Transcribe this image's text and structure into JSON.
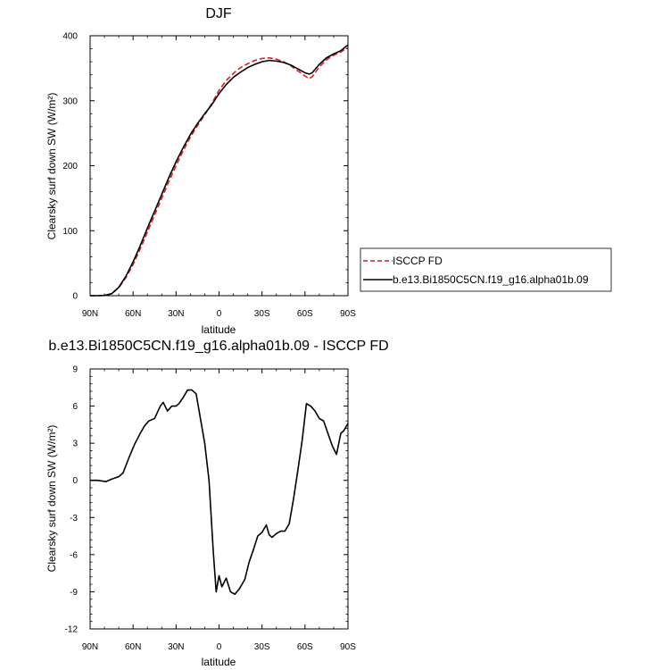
{
  "chart_data": [
    {
      "type": "line",
      "title": "DJF",
      "xlabel": "latitude",
      "ylabel": "Clearsky surf down SW (W/m²)",
      "x_ticks": [
        -90,
        -60,
        -30,
        0,
        30,
        60,
        90
      ],
      "x_tick_labels": [
        "90N",
        "60N",
        "30N",
        "0",
        "30S",
        "60S",
        "90S"
      ],
      "xlim": [
        -90,
        90
      ],
      "y_ticks": [
        0,
        100,
        200,
        300,
        400
      ],
      "y_tick_labels": [
        "0",
        "100",
        "200",
        "300",
        "400"
      ],
      "ylim": [
        0,
        400
      ],
      "grid": false,
      "legend": {
        "placement": "right",
        "entries": [
          "ISCCP FD",
          "b.e13.Bi1850C5CN.f19_g16.alpha01b.09"
        ]
      },
      "series": [
        {
          "name": "ISCCP FD",
          "color": "#e41a1c",
          "dash": true,
          "x": [
            -90,
            -85,
            -80,
            -75,
            -70,
            -65,
            -60,
            -55,
            -50,
            -45,
            -40,
            -35,
            -30,
            -25,
            -20,
            -15,
            -10,
            -5,
            0,
            5,
            10,
            15,
            20,
            25,
            30,
            35,
            40,
            45,
            50,
            55,
            60,
            63,
            65,
            70,
            75,
            80,
            85,
            90
          ],
          "values": [
            0,
            0,
            0.5,
            3,
            12,
            28,
            48,
            72,
            98,
            124,
            150,
            176,
            200,
            223,
            244,
            262,
            278,
            296,
            316,
            331,
            342,
            351,
            357,
            362,
            365,
            366,
            364,
            360,
            354,
            346,
            338,
            334,
            337,
            352,
            363,
            370,
            375,
            382
          ]
        },
        {
          "name": "b.e13.Bi1850C5CN.f19_g16.alpha01b.09",
          "color": "#000000",
          "dash": false,
          "x": [
            -90,
            -85,
            -80,
            -75,
            -70,
            -65,
            -60,
            -55,
            -50,
            -45,
            -40,
            -35,
            -30,
            -25,
            -20,
            -15,
            -10,
            -5,
            0,
            5,
            10,
            15,
            20,
            25,
            30,
            35,
            40,
            45,
            50,
            55,
            60,
            63,
            65,
            70,
            75,
            80,
            85,
            90
          ],
          "values": [
            0,
            0,
            0.5,
            3,
            13,
            30,
            52,
            77,
            104,
            130,
            156,
            182,
            206,
            228,
            248,
            265,
            280,
            294,
            311,
            325,
            336,
            344,
            351,
            356,
            360,
            362,
            361,
            359,
            355,
            349,
            343,
            341,
            343,
            356,
            366,
            372,
            377,
            386
          ]
        }
      ]
    },
    {
      "type": "line",
      "title": "b.e13.Bi1850C5CN.f19_g16.alpha01b.09 - ISCCP FD",
      "xlabel": "latitude",
      "ylabel": "Clearsky surf down SW (W/m²)",
      "x_ticks": [
        -90,
        -60,
        -30,
        0,
        30,
        60,
        90
      ],
      "x_tick_labels": [
        "90N",
        "60N",
        "30N",
        "0",
        "30S",
        "60S",
        "90S"
      ],
      "xlim": [
        -90,
        90
      ],
      "y_ticks": [
        -12,
        -9,
        -6,
        -3,
        0,
        3,
        6,
        9
      ],
      "y_tick_labels": [
        "-12",
        "-9",
        "-6",
        "-3",
        "0",
        "3",
        "6",
        "9"
      ],
      "ylim": [
        -12,
        9
      ],
      "grid": false,
      "series": [
        {
          "color": "#000000",
          "dash": false,
          "x": [
            -90,
            -85,
            -79,
            -75,
            -70,
            -67,
            -63,
            -59,
            -55,
            -52,
            -49,
            -45,
            -41,
            -39,
            -36,
            -33,
            -30,
            -28,
            -25,
            -22,
            -19,
            -16,
            -13,
            -10,
            -7,
            -4,
            -2,
            0,
            2,
            5,
            8,
            11,
            14,
            18,
            21,
            24,
            27,
            30,
            33,
            35,
            37,
            40,
            43,
            46,
            49,
            52,
            55,
            58,
            61,
            64,
            67,
            70,
            73,
            76,
            79,
            82,
            85,
            87,
            90
          ],
          "values": [
            0,
            0,
            -0.1,
            0.1,
            0.3,
            0.6,
            1.8,
            2.9,
            3.8,
            4.4,
            4.8,
            5.0,
            6.0,
            6.3,
            5.6,
            6.0,
            6.0,
            6.2,
            6.7,
            7.3,
            7.3,
            7.0,
            5.0,
            3.0,
            0,
            -5.8,
            -9.0,
            -7.7,
            -8.6,
            -7.9,
            -9.0,
            -9.2,
            -8.8,
            -8.0,
            -6.6,
            -5.6,
            -4.5,
            -4.2,
            -3.6,
            -4.4,
            -4.6,
            -4.3,
            -4.1,
            -4.1,
            -3.5,
            -1.5,
            0.8,
            3.2,
            6.2,
            6.0,
            5.6,
            5.0,
            4.8,
            3.8,
            2.8,
            2.1,
            3.8,
            4.0,
            4.6
          ]
        }
      ]
    }
  ]
}
